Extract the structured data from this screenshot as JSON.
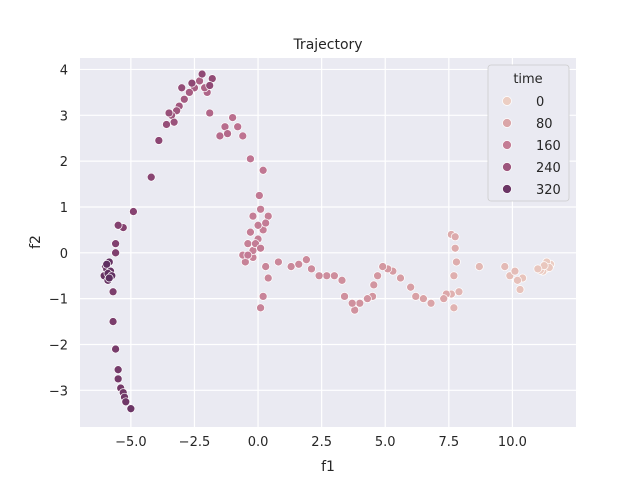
{
  "chart_data": {
    "type": "scatter",
    "title": "Trajectory",
    "xlabel": "f1",
    "ylabel": "f2",
    "xlim": [
      -7.0,
      12.5
    ],
    "ylim": [
      -3.8,
      4.25
    ],
    "xticks": [
      -5.0,
      -2.5,
      0.0,
      2.5,
      5.0,
      7.5,
      10.0
    ],
    "xtick_labels": [
      "−5.0",
      "−2.5",
      "0.0",
      "2.5",
      "5.0",
      "7.5",
      "10.0"
    ],
    "yticks": [
      -3,
      -2,
      -1,
      0,
      1,
      2,
      3,
      4
    ],
    "ytick_labels": [
      "−3",
      "−2",
      "−1",
      "0",
      "1",
      "2",
      "3",
      "4"
    ],
    "grid": true,
    "hue": "time",
    "hue_range": [
      0,
      360
    ],
    "legend": {
      "title": "time",
      "placement": "top-right",
      "entries": [
        {
          "label": "0",
          "value": 0
        },
        {
          "label": "80",
          "value": 80
        },
        {
          "label": "160",
          "value": 160
        },
        {
          "label": "240",
          "value": 240
        },
        {
          "label": "320",
          "value": 320
        }
      ]
    },
    "points": [
      [
        11.4,
        -0.3,
        0
      ],
      [
        11.3,
        -0.35,
        2
      ],
      [
        11.5,
        -0.25,
        4
      ],
      [
        11.2,
        -0.4,
        6
      ],
      [
        11.35,
        -0.2,
        8
      ],
      [
        11.1,
        -0.38,
        10
      ],
      [
        11.45,
        -0.32,
        12
      ],
      [
        11.25,
        -0.28,
        14
      ],
      [
        11.0,
        -0.35,
        16
      ],
      [
        10.4,
        -0.55,
        20
      ],
      [
        10.3,
        -0.8,
        24
      ],
      [
        10.2,
        -0.6,
        28
      ],
      [
        9.9,
        -0.5,
        32
      ],
      [
        10.1,
        -0.4,
        36
      ],
      [
        9.7,
        -0.3,
        40
      ],
      [
        8.7,
        -0.3,
        44
      ],
      [
        7.9,
        -0.85,
        48
      ],
      [
        7.7,
        -1.2,
        52
      ],
      [
        7.6,
        -0.9,
        56
      ],
      [
        7.7,
        -0.5,
        60
      ],
      [
        7.8,
        -0.2,
        64
      ],
      [
        7.75,
        0.1,
        66
      ],
      [
        7.6,
        0.4,
        68
      ],
      [
        7.75,
        0.35,
        70
      ],
      [
        7.4,
        -0.9,
        74
      ],
      [
        7.3,
        -1.0,
        78
      ],
      [
        6.8,
        -1.1,
        82
      ],
      [
        6.5,
        -1.0,
        86
      ],
      [
        6.2,
        -0.95,
        90
      ],
      [
        6.0,
        -0.75,
        94
      ],
      [
        5.6,
        -0.55,
        98
      ],
      [
        5.3,
        -0.4,
        102
      ],
      [
        5.1,
        -0.35,
        104
      ],
      [
        4.9,
        -0.3,
        106
      ],
      [
        4.7,
        -0.5,
        108
      ],
      [
        4.55,
        -0.7,
        110
      ],
      [
        4.5,
        -0.95,
        112
      ],
      [
        4.3,
        -1.0,
        114
      ],
      [
        4.0,
        -1.1,
        116
      ],
      [
        3.8,
        -1.25,
        118
      ],
      [
        3.7,
        -1.1,
        120
      ],
      [
        3.4,
        -0.95,
        122
      ],
      [
        3.3,
        -0.6,
        124
      ],
      [
        3.0,
        -0.5,
        126
      ],
      [
        2.7,
        -0.5,
        128
      ],
      [
        2.4,
        -0.5,
        130
      ],
      [
        2.1,
        -0.35,
        132
      ],
      [
        1.9,
        -0.15,
        134
      ],
      [
        1.6,
        -0.25,
        136
      ],
      [
        1.3,
        -0.3,
        138
      ],
      [
        0.8,
        -0.2,
        140
      ],
      [
        0.4,
        -0.55,
        142
      ],
      [
        0.3,
        -0.3,
        144
      ],
      [
        0.2,
        -0.95,
        146
      ],
      [
        0.1,
        -1.2,
        148
      ],
      [
        -0.2,
        -0.1,
        150
      ],
      [
        -0.5,
        -0.2,
        151
      ],
      [
        -0.6,
        -0.05,
        152
      ],
      [
        -0.4,
        0.2,
        153
      ],
      [
        -0.2,
        0.05,
        154
      ],
      [
        0.0,
        0.3,
        155
      ],
      [
        0.2,
        0.5,
        156
      ],
      [
        0.4,
        0.8,
        157
      ],
      [
        0.1,
        0.95,
        158
      ],
      [
        -0.2,
        0.8,
        159
      ],
      [
        -0.3,
        0.45,
        160
      ],
      [
        0.0,
        0.6,
        161
      ],
      [
        0.3,
        0.65,
        162
      ],
      [
        -0.1,
        0.2,
        163
      ],
      [
        -0.4,
        -0.05,
        164
      ],
      [
        0.1,
        0.1,
        165
      ],
      [
        0.05,
        1.25,
        168
      ],
      [
        0.2,
        1.8,
        172
      ],
      [
        -0.3,
        2.05,
        176
      ],
      [
        -0.6,
        2.55,
        180
      ],
      [
        -0.8,
        2.75,
        184
      ],
      [
        -1.0,
        2.95,
        188
      ],
      [
        -1.3,
        2.75,
        192
      ],
      [
        -1.5,
        2.55,
        196
      ],
      [
        -1.2,
        2.6,
        200
      ],
      [
        -1.9,
        3.05,
        204
      ],
      [
        -2.0,
        3.5,
        208
      ],
      [
        -2.1,
        3.6,
        212
      ],
      [
        -2.3,
        3.75,
        216
      ],
      [
        -2.5,
        3.6,
        220
      ],
      [
        -2.7,
        3.5,
        224
      ],
      [
        -2.9,
        3.35,
        228
      ],
      [
        -3.1,
        3.2,
        232
      ],
      [
        -3.2,
        3.1,
        236
      ],
      [
        -3.4,
        3.0,
        240
      ],
      [
        -3.3,
        2.85,
        244
      ],
      [
        -3.5,
        3.05,
        248
      ],
      [
        -3.6,
        2.8,
        252
      ],
      [
        -3.0,
        3.6,
        256
      ],
      [
        -1.8,
        3.8,
        260
      ],
      [
        -1.9,
        3.65,
        262
      ],
      [
        -2.2,
        3.9,
        264
      ],
      [
        -2.6,
        3.7,
        266
      ],
      [
        -3.9,
        2.45,
        270
      ],
      [
        -4.2,
        1.65,
        274
      ],
      [
        -4.9,
        0.9,
        278
      ],
      [
        -5.3,
        0.55,
        282
      ],
      [
        -5.5,
        0.6,
        284
      ],
      [
        -5.6,
        0.2,
        286
      ],
      [
        -5.6,
        0.0,
        288
      ],
      [
        -5.7,
        -0.85,
        292
      ],
      [
        -5.7,
        -1.5,
        296
      ],
      [
        -5.6,
        -2.1,
        300
      ],
      [
        -5.5,
        -2.55,
        304
      ],
      [
        -5.5,
        -2.75,
        306
      ],
      [
        -5.4,
        -2.95,
        308
      ],
      [
        -5.3,
        -3.05,
        310
      ],
      [
        -5.25,
        -3.15,
        312
      ],
      [
        -5.2,
        -3.25,
        314
      ],
      [
        -5.0,
        -3.4,
        318
      ],
      [
        -6.0,
        -0.3,
        322
      ],
      [
        -5.95,
        -0.35,
        324
      ],
      [
        -6.05,
        -0.5,
        326
      ],
      [
        -5.9,
        -0.6,
        328
      ],
      [
        -5.8,
        -0.4,
        330
      ],
      [
        -5.85,
        -0.2,
        332
      ],
      [
        -5.9,
        -0.45,
        334
      ],
      [
        -5.75,
        -0.5,
        336
      ],
      [
        -5.95,
        -0.25,
        338
      ],
      [
        -5.85,
        -0.55,
        340
      ]
    ]
  }
}
